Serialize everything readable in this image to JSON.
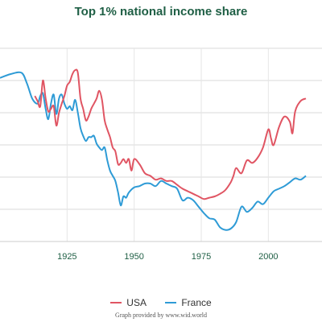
{
  "page": {
    "title": "Top 1% national income share",
    "credit": "Graph provided by www.wid.world"
  },
  "chart_data": {
    "type": "line",
    "title": "Top 1% national income share",
    "xlabel": "",
    "ylabel": "",
    "xlim": [
      1900,
      2020
    ],
    "ylim": [
      7.5,
      22.5
    ],
    "x_ticks": [
      1925,
      1950,
      1975,
      2000
    ],
    "y_gridlines": [
      7.5,
      10,
      12.5,
      15,
      17.5,
      20,
      22.5
    ],
    "grid": "vertical and horizontal",
    "legend_position": "bottom",
    "colors": {
      "USA": "#e05563",
      "France": "#2e9bd6",
      "title": "#1f5f45"
    },
    "series": [
      {
        "name": "USA",
        "x": [
          1913,
          1914,
          1915,
          1916,
          1917,
          1918,
          1919,
          1920,
          1921,
          1922,
          1923,
          1924,
          1925,
          1926,
          1927,
          1928,
          1929,
          1930,
          1931,
          1932,
          1933,
          1934,
          1935,
          1936,
          1937,
          1938,
          1939,
          1940,
          1941,
          1942,
          1943,
          1944,
          1945,
          1946,
          1947,
          1948,
          1949,
          1950,
          1952,
          1954,
          1956,
          1958,
          1960,
          1962,
          1964,
          1966,
          1968,
          1970,
          1972,
          1974,
          1976,
          1978,
          1980,
          1982,
          1984,
          1986,
          1987,
          1988,
          1990,
          1992,
          1994,
          1996,
          1998,
          2000,
          2001,
          2002,
          2004,
          2006,
          2008,
          2009,
          2010,
          2012,
          2014
        ],
        "values": [
          18.8,
          18.4,
          18.0,
          20.0,
          18.6,
          17.6,
          17.8,
          18.0,
          16.5,
          17.5,
          18.2,
          18.8,
          19.6,
          19.9,
          20.5,
          20.8,
          20.6,
          18.6,
          17.8,
          16.9,
          17.2,
          17.8,
          18.2,
          18.6,
          19.2,
          18.5,
          16.9,
          16.2,
          15.6,
          14.8,
          14.5,
          13.5,
          13.6,
          13.9,
          13.6,
          13.9,
          13.0,
          13.9,
          13.5,
          12.8,
          12.6,
          12.3,
          12.4,
          12.2,
          12.2,
          11.9,
          11.6,
          11.4,
          11.2,
          11.0,
          10.8,
          10.9,
          11.0,
          11.2,
          11.5,
          12.1,
          12.6,
          13.2,
          12.8,
          13.8,
          13.6,
          14.0,
          14.8,
          16.2,
          15.5,
          15.0,
          16.4,
          17.2,
          16.8,
          15.9,
          17.6,
          18.4,
          18.6
        ]
      },
      {
        "name": "France",
        "x": [
          1900,
          1904,
          1908,
          1910,
          1912,
          1914,
          1915,
          1916,
          1917,
          1918,
          1919,
          1920,
          1921,
          1922,
          1923,
          1924,
          1925,
          1926,
          1927,
          1928,
          1929,
          1930,
          1931,
          1932,
          1933,
          1934,
          1935,
          1936,
          1937,
          1938,
          1939,
          1940,
          1941,
          1942,
          1943,
          1944,
          1945,
          1946,
          1947,
          1948,
          1950,
          1952,
          1954,
          1956,
          1958,
          1960,
          1962,
          1964,
          1966,
          1968,
          1970,
          1972,
          1974,
          1976,
          1978,
          1980,
          1982,
          1984,
          1986,
          1988,
          1990,
          1992,
          1994,
          1996,
          1998,
          2000,
          2002,
          2004,
          2006,
          2008,
          2010,
          2012,
          2014
        ],
        "values": [
          20.2,
          20.5,
          20.6,
          19.8,
          18.6,
          18.2,
          18.8,
          19.0,
          17.8,
          17.0,
          18.2,
          18.9,
          17.4,
          18.6,
          18.9,
          18.2,
          17.8,
          18.0,
          17.7,
          18.5,
          17.5,
          16.3,
          15.7,
          15.3,
          15.6,
          15.6,
          15.7,
          15.1,
          14.8,
          14.6,
          14.8,
          13.8,
          13.0,
          12.6,
          12.2,
          11.3,
          10.3,
          11.0,
          10.9,
          11.3,
          11.7,
          11.8,
          12.0,
          12.0,
          11.8,
          12.2,
          12.0,
          11.8,
          11.6,
          10.7,
          10.9,
          10.7,
          10.2,
          9.7,
          9.3,
          9.2,
          8.6,
          8.4,
          8.5,
          9.0,
          10.2,
          9.8,
          10.1,
          10.6,
          10.4,
          10.9,
          11.4,
          11.6,
          11.8,
          12.1,
          12.4,
          12.3,
          12.6
        ]
      }
    ]
  }
}
